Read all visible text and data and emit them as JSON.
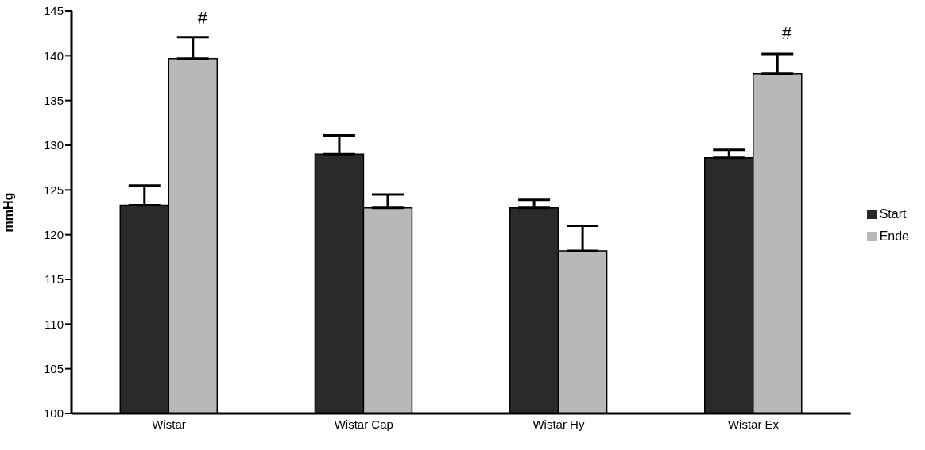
{
  "chart_data": {
    "type": "bar",
    "ylabel": "mmHg",
    "categories": [
      "Wistar",
      "Wistar Cap",
      "Wistar Hy",
      "Wistar Ex"
    ],
    "series": [
      {
        "name": "Start",
        "color": "#2a2a2a",
        "values": [
          123.3,
          129.0,
          123.0,
          128.6
        ],
        "errors": [
          [
            123.3,
            125.5
          ],
          [
            129.0,
            131.1
          ],
          [
            123.0,
            123.9
          ],
          [
            128.6,
            129.5
          ]
        ]
      },
      {
        "name": "Ende",
        "color": "#b8b8b8",
        "values": [
          139.7,
          123.0,
          118.2,
          138.0
        ],
        "errors": [
          [
            139.7,
            142.1
          ],
          [
            123.0,
            124.5
          ],
          [
            118.2,
            121.0
          ],
          [
            138.0,
            140.2
          ]
        ]
      }
    ],
    "ylim": [
      100,
      145
    ],
    "yticks": [
      100,
      105,
      110,
      115,
      120,
      125,
      130,
      135,
      140,
      145
    ],
    "grid": false,
    "legend": "right",
    "annotations": [
      {
        "text": "#",
        "x": "Wistar",
        "y": 139.7
      },
      {
        "text": "#",
        "x": "Wistar Ex",
        "y": 138.0
      }
    ]
  }
}
